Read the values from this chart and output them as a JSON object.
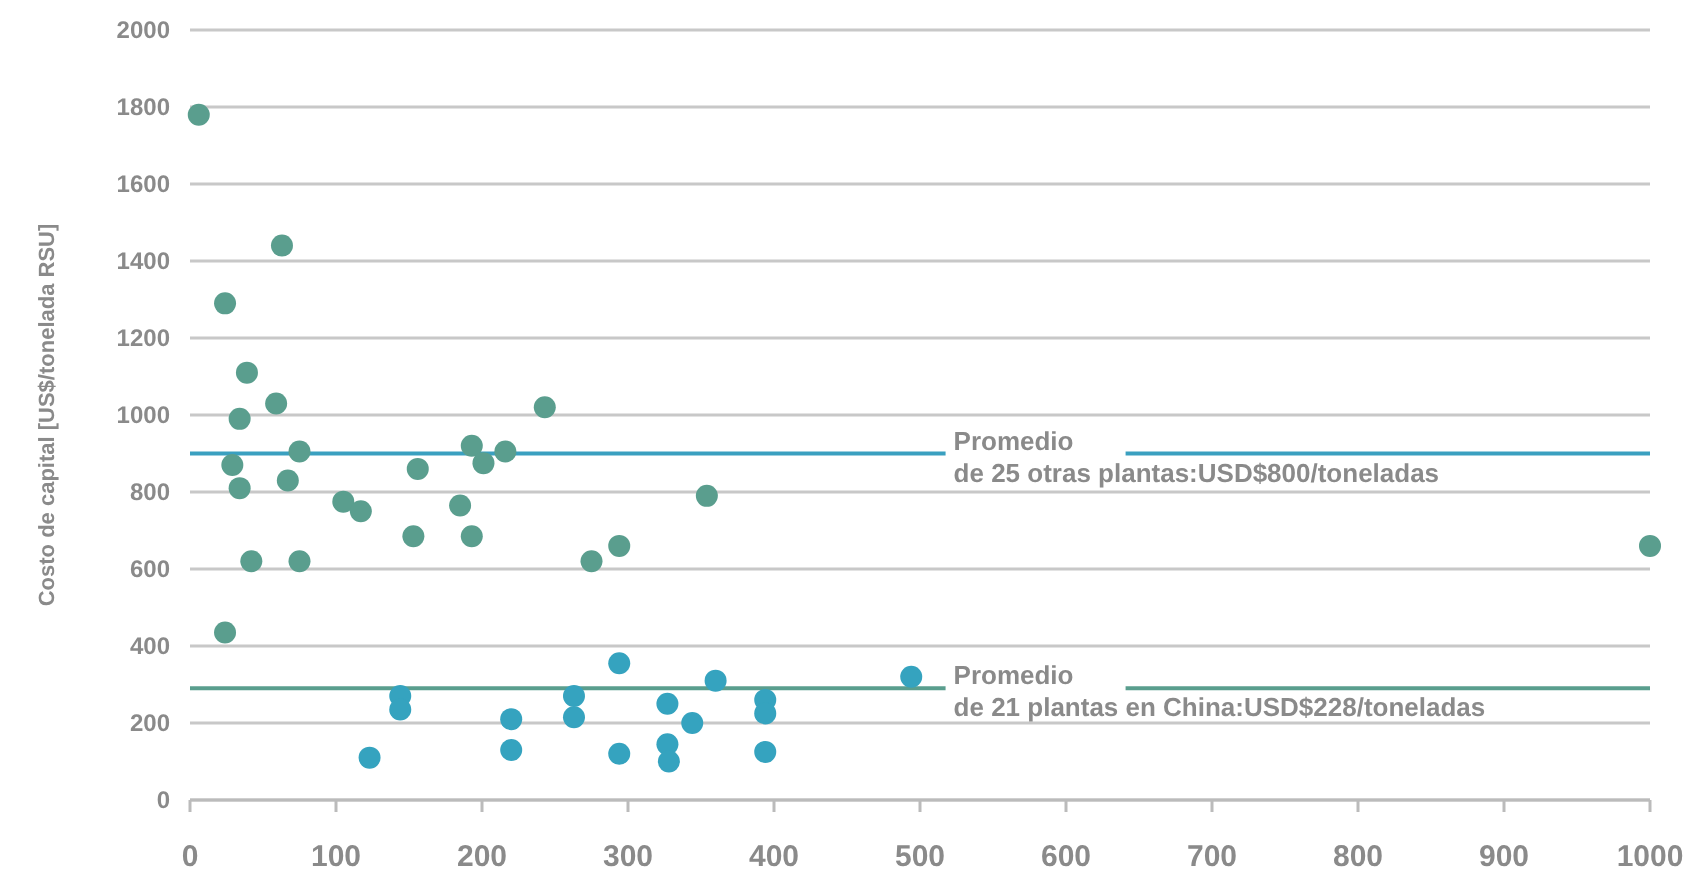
{
  "chart_data": {
    "type": "scatter",
    "ylabel": "Costo de capital [US$/tonelada RSU]",
    "xlim": [
      0,
      1000
    ],
    "xticks": [
      0,
      100,
      200,
      300,
      400,
      500,
      600,
      700,
      800,
      900,
      1000
    ],
    "ylim": [
      0,
      2000
    ],
    "yticks": [
      0,
      200,
      400,
      600,
      800,
      1000,
      1200,
      1400,
      1600,
      1800,
      2000
    ],
    "grid": "y",
    "marker": "circle",
    "series": [
      {
        "color": "#5a9e8e",
        "x": [
          6,
          24,
          63,
          39,
          34,
          59,
          243,
          29,
          34,
          75,
          67,
          42,
          75,
          24,
          105,
          117,
          156,
          153,
          193,
          201,
          216,
          185,
          193,
          275,
          294,
          354,
          1000
        ],
        "values": [
          1780,
          1290,
          1440,
          1110,
          990,
          1030,
          1020,
          870,
          810,
          905,
          830,
          620,
          620,
          435,
          775,
          750,
          860,
          685,
          920,
          875,
          905,
          765,
          685,
          620,
          660,
          790,
          660
        ]
      },
      {
        "color": "#35a3bf",
        "x": [
          123,
          144,
          144,
          220,
          220,
          263,
          263,
          294,
          294,
          327,
          327,
          328,
          344,
          360,
          394,
          394,
          394,
          494
        ],
        "values": [
          110,
          270,
          235,
          210,
          130,
          270,
          215,
          355,
          120,
          250,
          145,
          100,
          200,
          310,
          260,
          225,
          125,
          320
        ]
      }
    ],
    "ref_lines": [
      {
        "axis": "y",
        "value": 900,
        "color": "#3aa0c0",
        "label": "Promedio\nde 25 otras plantas:USD$800/toneladas"
      },
      {
        "axis": "y",
        "value": 290,
        "color": "#5a9e8e",
        "label": "Promedio\nde 21 plantas en China:USD$228/toneladas"
      }
    ]
  }
}
